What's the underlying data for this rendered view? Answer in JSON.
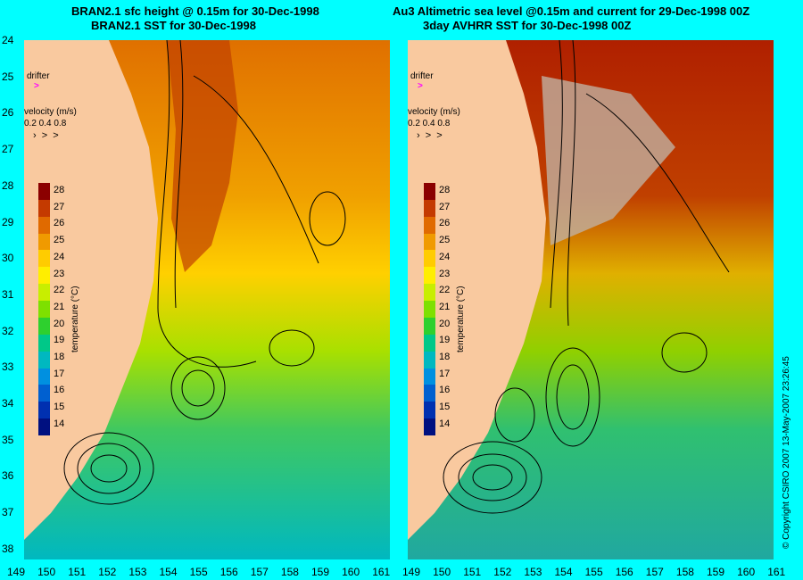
{
  "titles": {
    "left_line1": "BRAN2.1 sfc height @ 0.15m for 30-Dec-1998",
    "left_line2": "BRAN2.1 SST for 30-Dec-1998",
    "right_line1": "Au3 Altimetric sea level  @0.15m and current for 29-Dec-1998 00Z",
    "right_line2": "3day AVHRR SST for 30-Dec-1998 00Z"
  },
  "lat_ticks": [
    "24",
    "25",
    "26",
    "27",
    "28",
    "29",
    "30",
    "31",
    "32",
    "33",
    "34",
    "35",
    "36",
    "37",
    "38"
  ],
  "lon_ticks_left": [
    "149",
    "150",
    "151",
    "152",
    "153",
    "154",
    "155",
    "156",
    "157",
    "158",
    "159",
    "160",
    "161"
  ],
  "lon_ticks_right": [
    "149",
    "150",
    "151",
    "152",
    "153",
    "154",
    "155",
    "156",
    "157",
    "158",
    "159",
    "160",
    "161"
  ],
  "overlays": {
    "drifter_label": "drifter",
    "velocity_label": "velocity (m/s)",
    "velocity_scale": "0.2 0.4 0.8"
  },
  "colorbar": {
    "title": "temperature (°C)",
    "ticks": [
      "28",
      "27",
      "26",
      "25",
      "24",
      "23",
      "22",
      "21",
      "20",
      "19",
      "18",
      "17",
      "16",
      "15",
      "14"
    ],
    "colors": [
      "#8b0000",
      "#c43a00",
      "#e06a00",
      "#f09a00",
      "#ffcc00",
      "#ffee00",
      "#c8ee00",
      "#7ee000",
      "#2ed02e",
      "#00c888",
      "#00b8c0",
      "#0090e0",
      "#0060d0",
      "#0030b0",
      "#001080"
    ]
  },
  "copyright": "© Copyright CSIRO 2007   13-May-2007 23:26:45",
  "colors": {
    "background": "#00ffff",
    "land": "#f9c99f",
    "cloud": "#c0b0a0",
    "drifter": "#ff00ff"
  }
}
